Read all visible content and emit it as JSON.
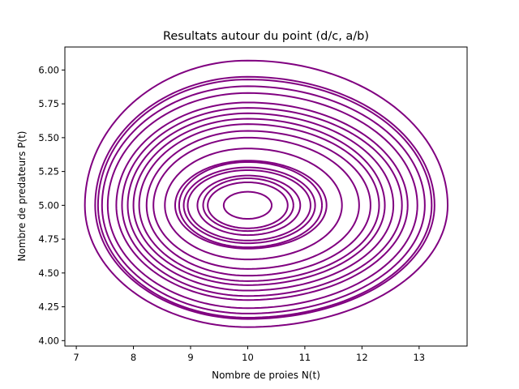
{
  "chart_data": {
    "type": "line",
    "title": "Resultats autour du point (d/c, a/b)",
    "xlabel": "Nombre de proies N(t)",
    "ylabel": "Nombre de predateurs P(t)",
    "xlim": [
      6.8,
      13.84
    ],
    "ylim": [
      3.96,
      6.17
    ],
    "xticks": [
      "7",
      "8",
      "9",
      "10",
      "11",
      "12",
      "13"
    ],
    "yticks": [
      "4.00",
      "4.25",
      "4.50",
      "4.75",
      "5.00",
      "5.25",
      "5.50",
      "5.75",
      "6.00"
    ],
    "grid": false,
    "legend": "none",
    "line_color": "#800080",
    "center": [
      10,
      5
    ],
    "series": [
      {
        "xmin": 9.58,
        "xmax": 10.42,
        "ymin": 4.9,
        "ymax": 5.1
      },
      {
        "xmin": 9.3,
        "xmax": 10.7,
        "ymin": 4.83,
        "ymax": 5.17
      },
      {
        "xmin": 9.22,
        "xmax": 10.8,
        "ymin": 4.81,
        "ymax": 5.2
      },
      {
        "xmin": 9.12,
        "xmax": 10.92,
        "ymin": 4.78,
        "ymax": 5.22
      },
      {
        "xmin": 8.95,
        "xmax": 11.1,
        "ymin": 4.74,
        "ymax": 5.26
      },
      {
        "xmin": 8.88,
        "xmax": 11.18,
        "ymin": 4.72,
        "ymax": 5.28
      },
      {
        "xmin": 8.8,
        "xmax": 11.3,
        "ymin": 4.69,
        "ymax": 5.32
      },
      {
        "xmin": 8.73,
        "xmax": 11.38,
        "ymin": 4.68,
        "ymax": 5.33
      },
      {
        "xmin": 8.55,
        "xmax": 11.65,
        "ymin": 4.6,
        "ymax": 5.42
      },
      {
        "xmin": 8.35,
        "xmax": 11.95,
        "ymin": 4.53,
        "ymax": 5.5
      },
      {
        "xmin": 8.23,
        "xmax": 12.15,
        "ymin": 4.48,
        "ymax": 5.55
      },
      {
        "xmin": 8.1,
        "xmax": 12.3,
        "ymin": 4.44,
        "ymax": 5.6
      },
      {
        "xmin": 8.0,
        "xmax": 12.4,
        "ymin": 4.41,
        "ymax": 5.64
      },
      {
        "xmin": 7.9,
        "xmax": 12.55,
        "ymin": 4.37,
        "ymax": 5.68
      },
      {
        "xmin": 7.8,
        "xmax": 12.7,
        "ymin": 4.33,
        "ymax": 5.72
      },
      {
        "xmin": 7.7,
        "xmax": 12.8,
        "ymin": 4.3,
        "ymax": 5.76
      },
      {
        "xmin": 7.55,
        "xmax": 12.97,
        "ymin": 4.24,
        "ymax": 5.83
      },
      {
        "xmin": 7.45,
        "xmax": 13.1,
        "ymin": 4.2,
        "ymax": 5.88
      },
      {
        "xmin": 7.38,
        "xmax": 13.22,
        "ymin": 4.17,
        "ymax": 5.93
      },
      {
        "xmin": 7.33,
        "xmax": 13.27,
        "ymin": 4.16,
        "ymax": 5.95
      },
      {
        "xmin": 7.15,
        "xmax": 13.5,
        "ymin": 4.1,
        "ymax": 6.07
      }
    ]
  }
}
